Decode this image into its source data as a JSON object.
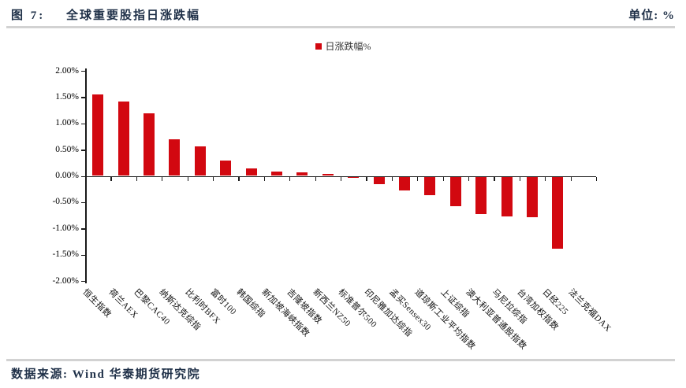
{
  "header": {
    "figure_label": "图 7:",
    "title": "全球重要股指日涨跌幅",
    "unit_label": "单位: %"
  },
  "legend": {
    "label": "日涨跌幅%"
  },
  "footer": {
    "source": "数据来源: Wind 华泰期货研究院"
  },
  "colors": {
    "bar": "#d20810",
    "rule": "#d2d2d2",
    "heading": "#1f3048",
    "axis": "#1a1a1a"
  },
  "chart_data": {
    "type": "bar",
    "title": "全球重要股指日涨跌幅",
    "series_name": "日涨跌幅%",
    "unit": "%",
    "legend_position": "top-center",
    "grid": false,
    "categories": [
      "恒生指数",
      "荷兰AEX",
      "巴黎CAC40",
      "纳斯达克综指",
      "比利时BFX",
      "富时100",
      "韩国综指",
      "新加坡海峡指数",
      "吉隆坡指数",
      "新西兰NZ50",
      "标准普尔500",
      "印尼雅加达综指",
      "孟买Sensex30",
      "道琼斯工业平均指数",
      "上证综指",
      "澳大利亚普通股指数",
      "马尼拉综指",
      "台湾加权指数",
      "日经225",
      "法兰克福DAX"
    ],
    "values": [
      1.55,
      1.42,
      1.19,
      0.69,
      0.56,
      0.29,
      0.14,
      0.08,
      0.06,
      0.03,
      -0.04,
      -0.15,
      -0.27,
      -0.37,
      -0.58,
      -0.72,
      -0.77,
      -0.79,
      -1.39,
      0.0
    ],
    "ylim": [
      -2.0,
      2.0
    ],
    "ytick_step": 0.5,
    "ytick_labels": [
      "2.00%",
      "1.50%",
      "1.00%",
      "0.50%",
      "0.00%",
      "-0.50%",
      "-1.00%",
      "-1.50%",
      "-2.00%"
    ]
  }
}
